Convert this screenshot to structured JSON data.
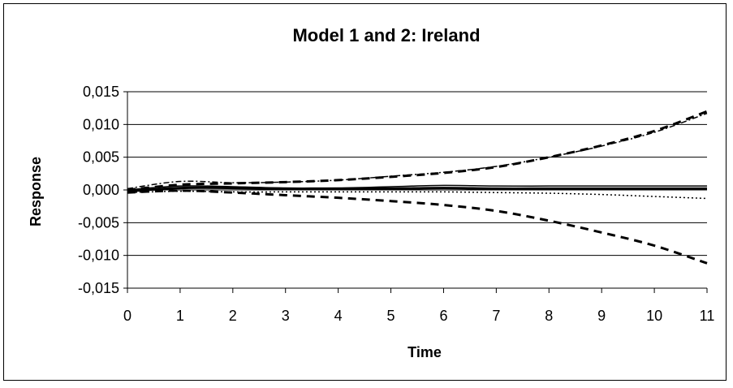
{
  "chart_data": {
    "type": "line",
    "title": "Model 1 and 2: Ireland",
    "xlabel": "Time",
    "ylabel": "Response",
    "xlim": [
      0,
      11
    ],
    "ylim": [
      -0.015,
      0.015
    ],
    "x_ticks": [
      "0",
      "1",
      "2",
      "3",
      "4",
      "5",
      "6",
      "7",
      "8",
      "9",
      "10",
      "11"
    ],
    "y_ticks": [
      {
        "value": 0.015,
        "label": "0,015"
      },
      {
        "value": 0.01,
        "label": "0,010"
      },
      {
        "value": 0.005,
        "label": "0,005"
      },
      {
        "value": 0.0,
        "label": "0,000"
      },
      {
        "value": -0.005,
        "label": "-0,005"
      },
      {
        "value": -0.01,
        "label": "-0,010"
      },
      {
        "value": -0.015,
        "label": "-0,015"
      }
    ],
    "grid": true,
    "x": [
      0,
      1,
      2,
      3,
      4,
      5,
      6,
      7,
      8,
      9,
      10,
      11
    ],
    "series": [
      {
        "style": "solid-thick",
        "values": [
          -0.0002,
          0.0003,
          0.0003,
          0.0002,
          0.0002,
          0.0002,
          0.0003,
          0.0002,
          0.0002,
          0.0002,
          0.0002,
          0.0002
        ]
      },
      {
        "style": "solid-thin",
        "values": [
          0.0,
          0.0006,
          0.0005,
          0.0003,
          0.0003,
          0.0005,
          0.0007,
          0.0006,
          0.0006,
          0.0006,
          0.0006,
          0.0006
        ]
      },
      {
        "style": "dash-upper",
        "values": [
          0.0,
          0.0008,
          0.001,
          0.0012,
          0.0015,
          0.002,
          0.0026,
          0.0035,
          0.005,
          0.0068,
          0.009,
          0.012
        ]
      },
      {
        "style": "dash-lower",
        "values": [
          -0.0004,
          -0.0001,
          -0.0004,
          -0.0008,
          -0.0012,
          -0.0017,
          -0.0023,
          -0.0032,
          -0.0047,
          -0.0065,
          -0.0085,
          -0.0112
        ]
      },
      {
        "style": "dashdot-upper",
        "values": [
          0.0002,
          0.0013,
          0.0011,
          0.0012,
          0.0015,
          0.0021,
          0.0027,
          0.0036,
          0.005,
          0.0067,
          0.0088,
          0.0117
        ]
      },
      {
        "style": "dot-lower",
        "values": [
          -0.0004,
          -0.0002,
          -0.0003,
          -0.0003,
          -0.0003,
          -0.0003,
          -0.0003,
          -0.0004,
          -0.0005,
          -0.0007,
          -0.001,
          -0.0013
        ]
      }
    ],
    "colors": {
      "line": "#000000",
      "grid": "#000000",
      "background": "#ffffff"
    }
  }
}
